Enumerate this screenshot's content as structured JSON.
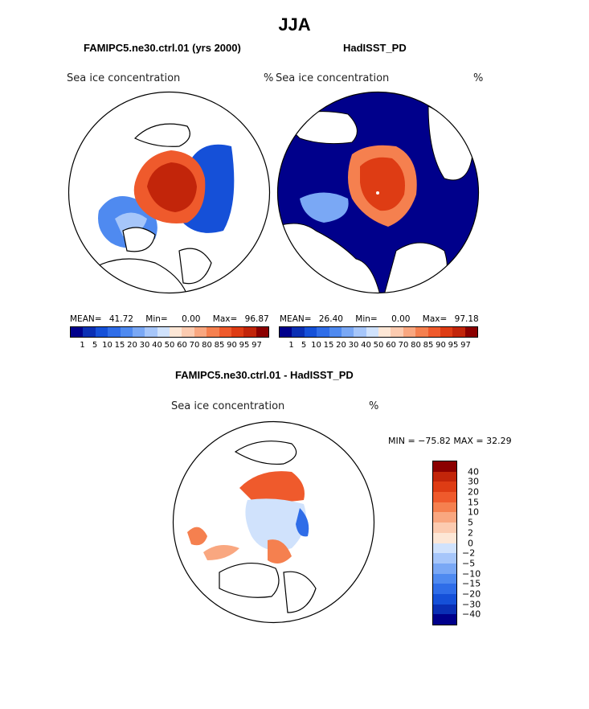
{
  "page": {
    "title": "JJA",
    "panel_left_title": "FAMIPC5.ne30.ctrl.01 (yrs 2000)",
    "panel_right_title": "HadISST_PD",
    "diff_title": "FAMIPC5.ne30.ctrl.01 - HadISST_PD"
  },
  "panels": {
    "left": {
      "variable": "Sea ice concentration",
      "units": "%",
      "mean_label": "MEAN=",
      "mean": "41.72",
      "min_label": "Min=",
      "min": "0.00",
      "max_label": "Max=",
      "max": "96.87"
    },
    "right": {
      "variable": "Sea ice concentration",
      "units": "%",
      "mean_label": "MEAN=",
      "mean": "26.40",
      "min_label": "Min=",
      "min": "0.00",
      "max_label": "Max=",
      "max": "97.18"
    },
    "diff": {
      "variable": "Sea ice concentration",
      "units": "%",
      "minmax_text": "MIN = −75.82  MAX =  32.29"
    }
  },
  "chart_data": [
    {
      "type": "heatmap",
      "title": "FAMIPC5.ne30.ctrl.01 (yrs 2000)",
      "variable": "Sea ice concentration",
      "units": "%",
      "mean": 41.72,
      "min": 0.0,
      "max": 96.87,
      "levels": [
        1,
        5,
        10,
        15,
        20,
        30,
        40,
        50,
        60,
        70,
        80,
        85,
        90,
        95,
        97
      ],
      "colors": [
        "#00008b",
        "#0a2fb4",
        "#1550d8",
        "#2f6de8",
        "#4f8af0",
        "#7aa8f5",
        "#a6c6fa",
        "#d0e2fc",
        "#fde7d6",
        "#fccbb0",
        "#f9a780",
        "#f5804f",
        "#ef5a2c",
        "#de3c14",
        "#c2250a",
        "#8b0000"
      ]
    },
    {
      "type": "heatmap",
      "title": "HadISST_PD",
      "variable": "Sea ice concentration",
      "units": "%",
      "mean": 26.4,
      "min": 0.0,
      "max": 97.18,
      "levels": [
        1,
        5,
        10,
        15,
        20,
        30,
        40,
        50,
        60,
        70,
        80,
        85,
        90,
        95,
        97
      ],
      "colors": [
        "#00008b",
        "#0a2fb4",
        "#1550d8",
        "#2f6de8",
        "#4f8af0",
        "#7aa8f5",
        "#a6c6fa",
        "#d0e2fc",
        "#fde7d6",
        "#fccbb0",
        "#f9a780",
        "#f5804f",
        "#ef5a2c",
        "#de3c14",
        "#c2250a",
        "#8b0000"
      ]
    },
    {
      "type": "heatmap",
      "title": "FAMIPC5.ne30.ctrl.01 - HadISST_PD",
      "variable": "Sea ice concentration",
      "units": "%",
      "min": -75.82,
      "max": 32.29,
      "levels": [
        40,
        30,
        20,
        15,
        10,
        5,
        2,
        0,
        -2,
        -5,
        -10,
        -15,
        -20,
        -30,
        -40
      ],
      "level_labels": [
        "40",
        "30",
        "20",
        "15",
        "10",
        "5",
        "2",
        "0",
        "−2",
        "−5",
        "−10",
        "−15",
        "−20",
        "−30",
        "−40"
      ],
      "colors": [
        "#8b0000",
        "#c2250a",
        "#de3c14",
        "#ef5a2c",
        "#f5804f",
        "#f9a780",
        "#fccbb0",
        "#fde7d6",
        "#d0e2fc",
        "#a6c6fa",
        "#7aa8f5",
        "#4f8af0",
        "#2f6de8",
        "#1550d8",
        "#0a2fb4",
        "#00008b"
      ]
    }
  ]
}
